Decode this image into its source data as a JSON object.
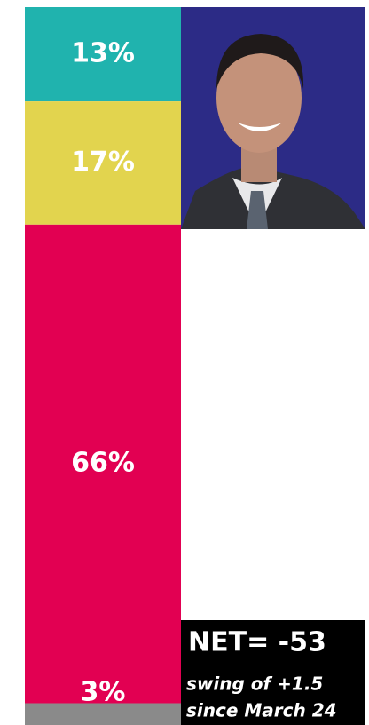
{
  "chart_data": {
    "type": "stacked_bar",
    "series": [
      {
        "color": "#20b3ae",
        "values": [
          13
        ],
        "value_labels": [
          "13%"
        ]
      },
      {
        "color": "#e2d44e",
        "values": [
          17
        ],
        "value_labels": [
          "17%"
        ]
      },
      {
        "color": "#e20052",
        "values": [
          66
        ],
        "value_labels": [
          "66%"
        ]
      },
      {
        "color": "#8a8a8a",
        "values": [
          3
        ],
        "value_labels": [
          "3%"
        ]
      }
    ],
    "annotations": [
      "NET= -53",
      "swing of +1.5",
      "since March 24"
    ]
  }
}
